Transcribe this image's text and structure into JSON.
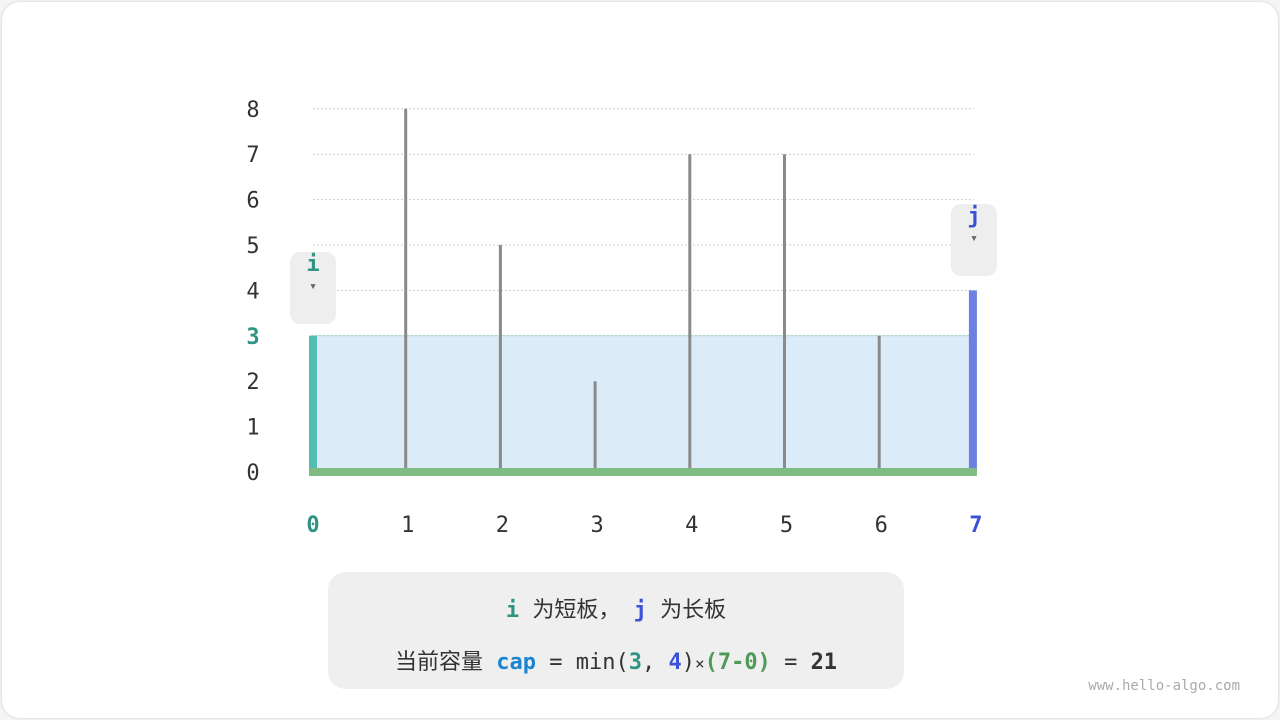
{
  "chart_data": {
    "type": "bar",
    "categories": [
      "0",
      "1",
      "2",
      "3",
      "4",
      "5",
      "6",
      "7"
    ],
    "values": [
      3,
      8,
      5,
      2,
      7,
      7,
      3,
      4
    ],
    "y_ticks": [
      "0",
      "1",
      "2",
      "3",
      "4",
      "5",
      "6",
      "7",
      "8"
    ],
    "ylim": [
      0,
      8
    ],
    "highlight_level": 3,
    "i_index": 0,
    "j_index": 7
  },
  "pointers": {
    "i": "i",
    "j": "j",
    "arrow": "▾"
  },
  "caption": {
    "line1": {
      "i": "i",
      "i_text": "为短板，",
      "j": "j",
      "j_text": "为长板"
    },
    "line2": {
      "label": "当前容量",
      "cap": "cap",
      "eq": "=",
      "min": "min(",
      "a": "3",
      "comma": ",",
      "b": "4",
      "close": ")",
      "times": "×",
      "paren": "(7-0)",
      "eq2": "=",
      "result": "21"
    }
  },
  "watermark": "www.hello-algo.com",
  "colors": {
    "i": "#2f9483",
    "j": "#3c50d8",
    "cap": "#1b85d1",
    "paren": "#4e9a5a",
    "water": "#dbecf8",
    "bar": "#8a8a8a",
    "base": "#7fbc83",
    "i_bar": "#52bdb0",
    "j_bar": "#6b80e0"
  }
}
